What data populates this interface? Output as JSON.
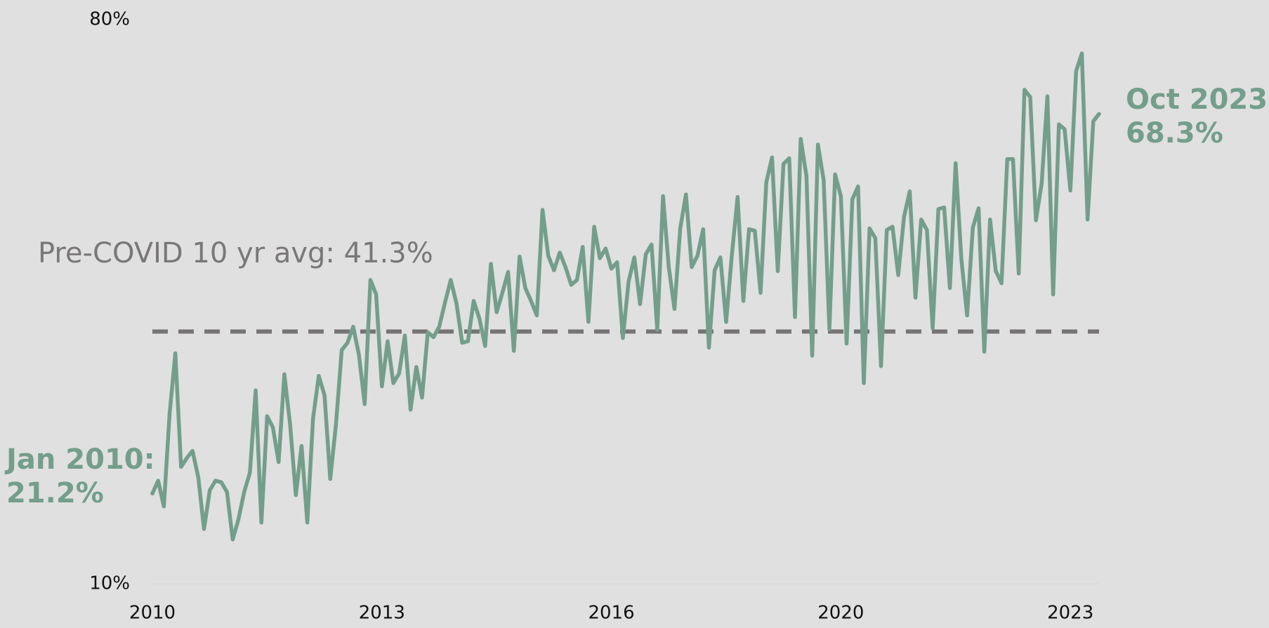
{
  "chart_data": {
    "type": "line",
    "categories": [
      "2010",
      null,
      null,
      null,
      null,
      null,
      null,
      null,
      null,
      null,
      null,
      null,
      null,
      null,
      null,
      null,
      null,
      null,
      null,
      null,
      null,
      null,
      null,
      null,
      null,
      null,
      null,
      null,
      null,
      null,
      null,
      null,
      null,
      null,
      null,
      null,
      null,
      null,
      null,
      null,
      "2013",
      null,
      null,
      null,
      null,
      null,
      null,
      null,
      null,
      null,
      null,
      null,
      null,
      null,
      null,
      null,
      null,
      null,
      null,
      null,
      null,
      null,
      null,
      null,
      null,
      null,
      null,
      null,
      null,
      null,
      null,
      null,
      null,
      null,
      null,
      null,
      null,
      null,
      null,
      null,
      "2016",
      null,
      null,
      null,
      null,
      null,
      null,
      null,
      null,
      null,
      null,
      null,
      null,
      null,
      null,
      null,
      null,
      null,
      null,
      null,
      null,
      null,
      null,
      null,
      null,
      null,
      null,
      null,
      null,
      null,
      null,
      null,
      null,
      null,
      null,
      null,
      null,
      null,
      null,
      null,
      "2020",
      null,
      null,
      null,
      null,
      null,
      null,
      null,
      null,
      null,
      null,
      null,
      null,
      null,
      null,
      null,
      null,
      null,
      null,
      null,
      null,
      null,
      null,
      null,
      null,
      null,
      null,
      null,
      null,
      null,
      null,
      null,
      null,
      null,
      null,
      null,
      null,
      null,
      null,
      null,
      "2023",
      null,
      null,
      null,
      null,
      null
    ],
    "series": [
      {
        "color": "#739e8b",
        "values": [
          21.2,
          22.8,
          19.6,
          31.1,
          38.6,
          24.5,
          25.6,
          26.5,
          23.2,
          16.8,
          21.6,
          22.8,
          22.6,
          21.4,
          15.5,
          18.0,
          21.4,
          23.8,
          34.0,
          17.6,
          30.8,
          29.4,
          25.1,
          36.0,
          29.8,
          21.0,
          27.1,
          17.6,
          30.5,
          35.8,
          33.4,
          23.0,
          29.8,
          39.0,
          39.9,
          41.9,
          38.4,
          32.3,
          47.7,
          45.9,
          34.5,
          40.1,
          34.9,
          36.1,
          40.8,
          31.6,
          36.9,
          33.1,
          41.2,
          40.6,
          41.9,
          44.9,
          47.7,
          44.8,
          39.9,
          40.1,
          45.1,
          42.9,
          39.5,
          49.7,
          43.7,
          46.1,
          48.7,
          38.9,
          50.6,
          46.7,
          45.1,
          43.3,
          56.4,
          50.7,
          48.9,
          51.1,
          49.3,
          47.1,
          47.7,
          51.8,
          42.5,
          54.3,
          50.4,
          51.6,
          49.1,
          49.9,
          40.5,
          47.5,
          50.5,
          44.7,
          50.9,
          52.1,
          41.5,
          58.1,
          49.3,
          44.1,
          54.1,
          58.3,
          49.3,
          50.7,
          54.0,
          39.3,
          48.9,
          50.5,
          42.5,
          50.8,
          58.0,
          45.1,
          54.0,
          53.8,
          46.1,
          59.8,
          62.9,
          48.8,
          62.1,
          62.8,
          43.1,
          65.2,
          60.6,
          38.3,
          64.5,
          60.1,
          41.6,
          60.8,
          58.1,
          39.8,
          57.7,
          59.3,
          34.9,
          54.1,
          52.9,
          37.0,
          53.9,
          54.3,
          48.3,
          55.5,
          58.7,
          45.5,
          55.2,
          53.9,
          41.7,
          56.5,
          56.7,
          46.7,
          62.2,
          50.3,
          43.3,
          54.2,
          56.6,
          38.8,
          55.2,
          48.8,
          47.3,
          62.7,
          62.7,
          48.5,
          71.3,
          70.4,
          55.1,
          59.7,
          70.5,
          45.9,
          67.0,
          66.4,
          58.8,
          73.6,
          75.8,
          55.2,
          67.4,
          68.3
        ]
      }
    ],
    "ylim": [
      10,
      80
    ],
    "yticks": [
      {
        "value": 10,
        "label": "10%"
      },
      {
        "value": 80,
        "label": "80%"
      }
    ],
    "grid": false,
    "reference_line": 41.3,
    "reference_color": "#777475",
    "annotations": [
      {
        "lines": [
          "Pre-COVID 10 yr avg: 41.3%"
        ],
        "color": "#7a7778"
      },
      {
        "lines": [
          "Jan 2010:",
          "21.2%"
        ],
        "color": "#739e8b"
      },
      {
        "lines": [
          "Oct 2023:",
          "68.3%"
        ],
        "color": "#739e8b"
      }
    ]
  }
}
